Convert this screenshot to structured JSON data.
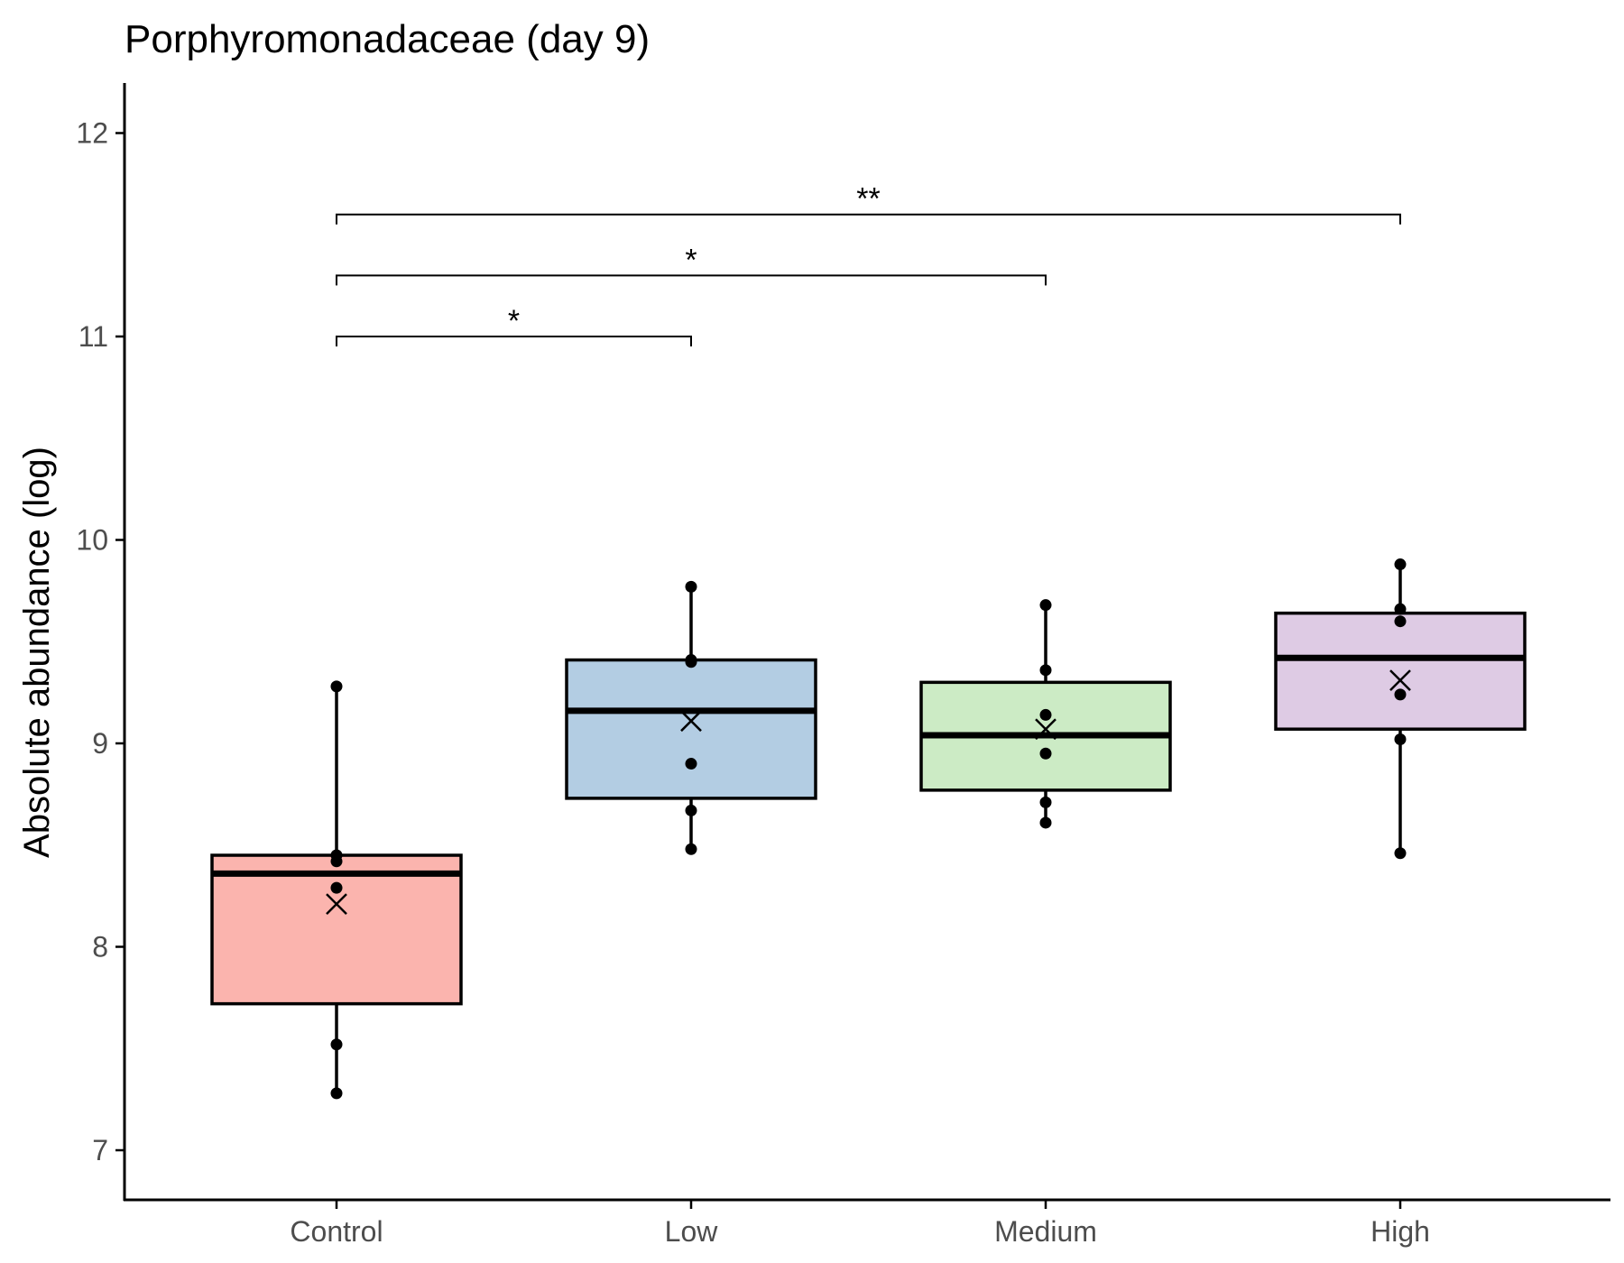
{
  "chart_data": {
    "type": "box",
    "title": "Porphyromonadaceae (day 9)",
    "xlabel": "",
    "ylabel": "Absolute abundance (log)",
    "ylim": [
      6.75,
      12.25
    ],
    "yticks": [
      7,
      8,
      9,
      10,
      11,
      12
    ],
    "grid": false,
    "legend": "none",
    "categories": [
      "Control",
      "Low",
      "Medium",
      "High"
    ],
    "colors": [
      "#FBB4AE",
      "#B3CDE3",
      "#CCEBC5",
      "#DECBE4"
    ],
    "boxes": [
      {
        "category": "Control",
        "whisker_low": 7.28,
        "q1": 7.72,
        "median": 8.36,
        "q3": 8.45,
        "whisker_high": 9.28,
        "mean": 8.21,
        "points": [
          7.28,
          7.52,
          8.29,
          8.42,
          8.45,
          9.28
        ]
      },
      {
        "category": "Low",
        "whisker_low": 8.48,
        "q1": 8.73,
        "median": 9.16,
        "q3": 9.41,
        "whisker_high": 9.77,
        "mean": 9.11,
        "points": [
          8.48,
          8.67,
          8.9,
          9.4,
          9.41,
          9.77
        ]
      },
      {
        "category": "Medium",
        "whisker_low": 8.61,
        "q1": 8.77,
        "median": 9.04,
        "q3": 9.3,
        "whisker_high": 9.68,
        "mean": 9.07,
        "points": [
          8.61,
          8.71,
          8.95,
          9.14,
          9.36,
          9.68
        ]
      },
      {
        "category": "High",
        "whisker_low": 8.46,
        "q1": 9.07,
        "median": 9.42,
        "q3": 9.64,
        "whisker_high": 9.88,
        "mean": 9.31,
        "points": [
          8.46,
          9.02,
          9.24,
          9.6,
          9.66,
          9.88
        ]
      }
    ],
    "comparisons": [
      {
        "from": "Control",
        "to": "Low",
        "y": 11.0,
        "label": "*"
      },
      {
        "from": "Control",
        "to": "Medium",
        "y": 11.3,
        "label": "*"
      },
      {
        "from": "Control",
        "to": "High",
        "y": 11.6,
        "label": "**"
      }
    ]
  }
}
